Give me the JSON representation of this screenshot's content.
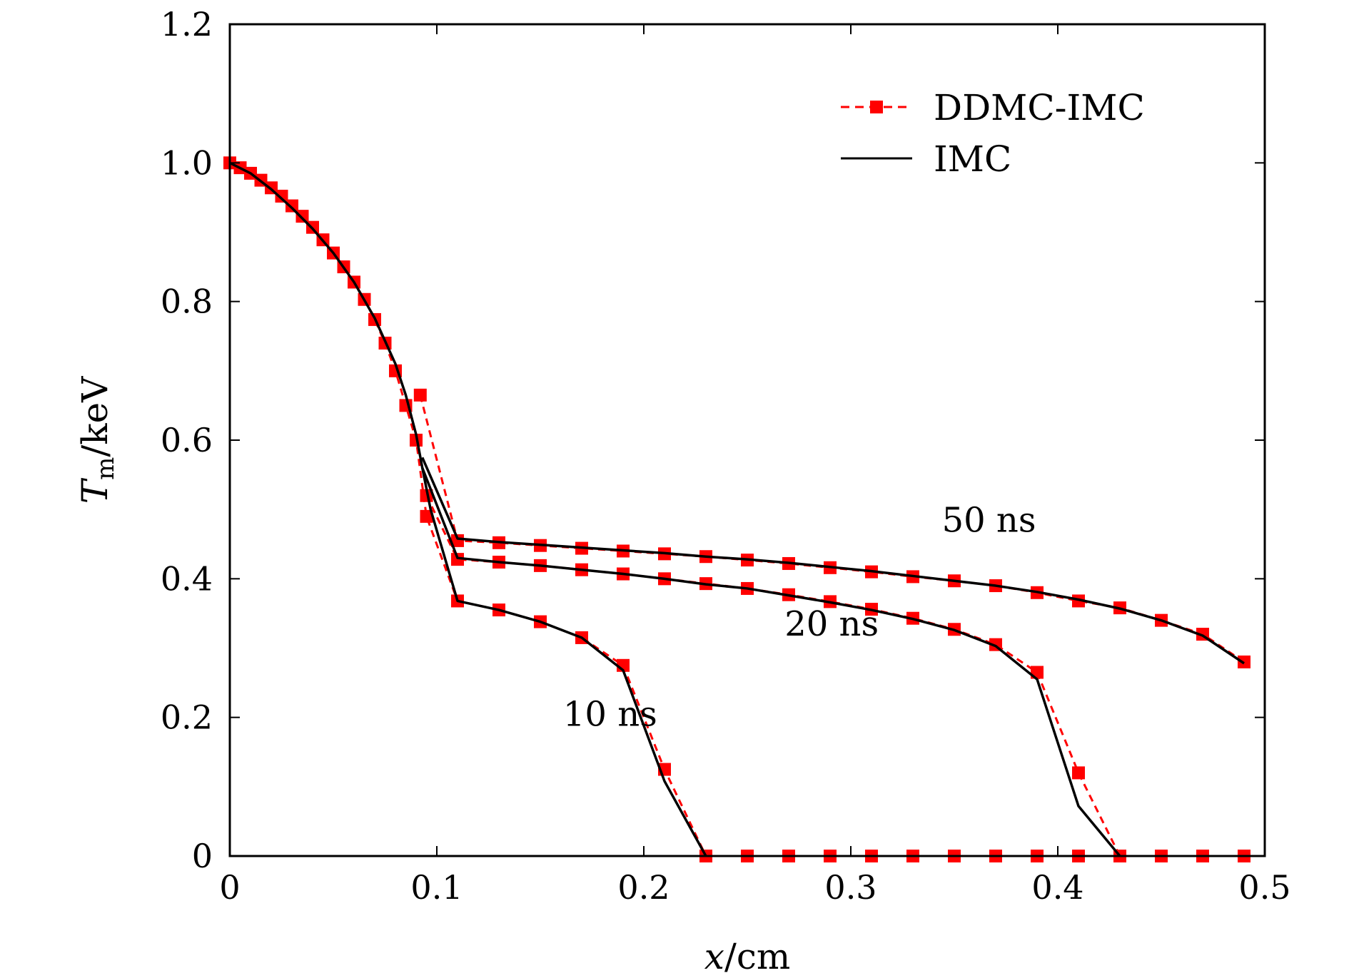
{
  "chart_data": {
    "type": "line",
    "title": "",
    "xlabel": "x/cm",
    "ylabel": "T_m/keV",
    "xlabel_parts": {
      "var": "x",
      "unit": "/cm"
    },
    "ylabel_parts": {
      "var": "T",
      "sub": "m",
      "unit": "/keV"
    },
    "xlim": [
      0,
      0.5
    ],
    "ylim": [
      0,
      1.2
    ],
    "xticks": [
      0,
      0.1,
      0.2,
      0.3,
      0.4,
      0.5
    ],
    "xtick_labels": [
      "0",
      "0.1",
      "0.2",
      "0.3",
      "0.4",
      "0.5"
    ],
    "yticks": [
      0,
      0.2,
      0.4,
      0.6,
      0.8,
      1.0,
      1.2
    ],
    "ytick_labels": [
      "0",
      "0.2",
      "0.4",
      "0.6",
      "0.8",
      "1.0",
      "1.2"
    ],
    "grid": false,
    "legend_position": "top-right",
    "legend": [
      {
        "label": "DDMC-IMC",
        "style": "dashed-square",
        "color": "#ff0000"
      },
      {
        "label": "IMC",
        "style": "solid",
        "color": "#000000"
      }
    ],
    "annotations": [
      {
        "text": "10 ns",
        "x": 0.161,
        "y": 0.188
      },
      {
        "text": "20 ns",
        "x": 0.268,
        "y": 0.318
      },
      {
        "text": "50 ns",
        "x": 0.344,
        "y": 0.468
      }
    ],
    "series": [
      {
        "name": "DDMC-IMC 10 ns",
        "group": "DDMC-IMC",
        "x": [
          0.0,
          0.005,
          0.01,
          0.015,
          0.02,
          0.025,
          0.03,
          0.035,
          0.04,
          0.045,
          0.05,
          0.055,
          0.06,
          0.065,
          0.07,
          0.075,
          0.08,
          0.085,
          0.09,
          0.095,
          0.11,
          0.13,
          0.15,
          0.17,
          0.19,
          0.21,
          0.23,
          0.25,
          0.27,
          0.29,
          0.31,
          0.33,
          0.35,
          0.37,
          0.39,
          0.41,
          0.43,
          0.45,
          0.47,
          0.49
        ],
        "y": [
          1.0,
          0.993,
          0.985,
          0.975,
          0.964,
          0.952,
          0.938,
          0.923,
          0.907,
          0.889,
          0.87,
          0.85,
          0.828,
          0.803,
          0.774,
          0.74,
          0.7,
          0.65,
          0.6,
          0.49,
          0.368,
          0.355,
          0.338,
          0.315,
          0.275,
          0.125,
          0.0,
          0.0,
          0.0,
          0.0,
          0.0,
          0.0,
          0.0,
          0.0,
          0.0,
          0.0,
          0.0,
          0.0,
          0.0,
          0.0
        ]
      },
      {
        "name": "DDMC-IMC 20 ns",
        "group": "DDMC-IMC",
        "x": [
          0.095,
          0.11,
          0.13,
          0.15,
          0.17,
          0.19,
          0.21,
          0.23,
          0.25,
          0.27,
          0.29,
          0.31,
          0.33,
          0.35,
          0.37,
          0.39,
          0.41,
          0.43
        ],
        "y": [
          0.52,
          0.428,
          0.424,
          0.419,
          0.413,
          0.407,
          0.4,
          0.393,
          0.386,
          0.377,
          0.367,
          0.356,
          0.343,
          0.327,
          0.305,
          0.265,
          0.12,
          0.0
        ]
      },
      {
        "name": "DDMC-IMC 50 ns",
        "group": "DDMC-IMC",
        "x": [
          0.092,
          0.11,
          0.13,
          0.15,
          0.17,
          0.19,
          0.21,
          0.23,
          0.25,
          0.27,
          0.29,
          0.31,
          0.33,
          0.35,
          0.37,
          0.39,
          0.41,
          0.43,
          0.45,
          0.47,
          0.49
        ],
        "y": [
          0.665,
          0.455,
          0.452,
          0.448,
          0.444,
          0.44,
          0.436,
          0.432,
          0.427,
          0.422,
          0.416,
          0.41,
          0.403,
          0.397,
          0.39,
          0.38,
          0.368,
          0.358,
          0.34,
          0.32,
          0.28
        ]
      },
      {
        "name": "IMC 10 ns",
        "group": "IMC",
        "x": [
          0.0,
          0.01,
          0.02,
          0.03,
          0.04,
          0.05,
          0.06,
          0.07,
          0.08,
          0.085,
          0.09,
          0.093,
          0.097,
          0.11,
          0.13,
          0.15,
          0.17,
          0.19,
          0.21,
          0.23
        ],
        "y": [
          1.0,
          0.985,
          0.962,
          0.935,
          0.905,
          0.87,
          0.828,
          0.776,
          0.71,
          0.665,
          0.608,
          0.56,
          0.5,
          0.368,
          0.355,
          0.338,
          0.315,
          0.268,
          0.108,
          0.0
        ]
      },
      {
        "name": "IMC 20 ns",
        "group": "IMC",
        "x": [
          0.093,
          0.11,
          0.13,
          0.15,
          0.17,
          0.19,
          0.21,
          0.23,
          0.25,
          0.27,
          0.29,
          0.31,
          0.33,
          0.35,
          0.37,
          0.39,
          0.41,
          0.43
        ],
        "y": [
          0.56,
          0.43,
          0.424,
          0.419,
          0.413,
          0.407,
          0.4,
          0.392,
          0.386,
          0.376,
          0.366,
          0.355,
          0.342,
          0.326,
          0.303,
          0.255,
          0.072,
          0.0
        ]
      },
      {
        "name": "IMC 50 ns",
        "group": "IMC",
        "x": [
          0.093,
          0.11,
          0.13,
          0.15,
          0.17,
          0.19,
          0.21,
          0.23,
          0.25,
          0.27,
          0.29,
          0.31,
          0.33,
          0.35,
          0.37,
          0.39,
          0.41,
          0.43,
          0.45,
          0.47,
          0.49
        ],
        "y": [
          0.575,
          0.458,
          0.453,
          0.449,
          0.445,
          0.441,
          0.437,
          0.432,
          0.428,
          0.423,
          0.417,
          0.411,
          0.404,
          0.397,
          0.39,
          0.381,
          0.37,
          0.357,
          0.34,
          0.318,
          0.278
        ]
      }
    ]
  }
}
